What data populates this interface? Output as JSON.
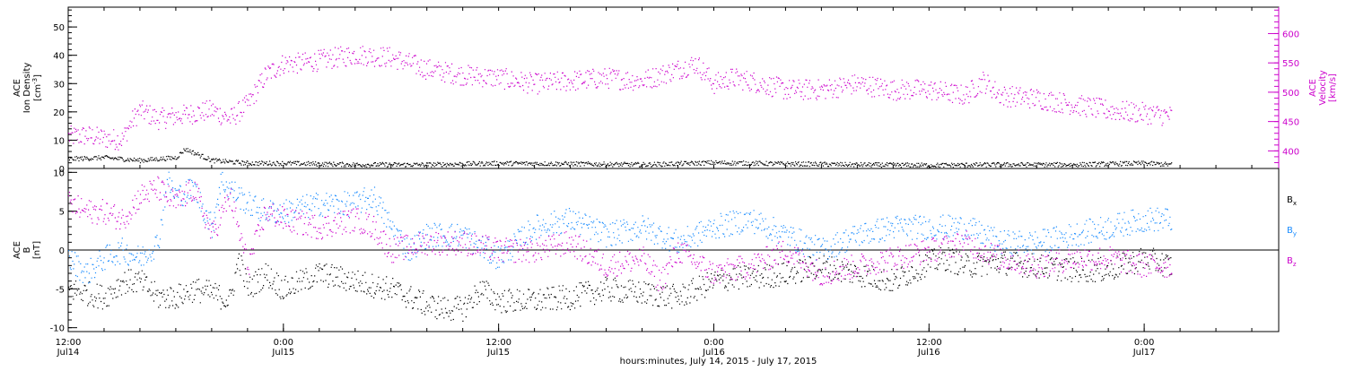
{
  "colors": {
    "black": "#000000",
    "magenta": "#cc00cc",
    "blue": "#1a8cff"
  },
  "time_axis": {
    "xlabel": "hours:minutes, July 14, 2015 - July 17, 2015",
    "ticks": [
      {
        "hours": 0,
        "time": "12:00",
        "day": "Jul14"
      },
      {
        "hours": 12,
        "time": "0:00",
        "day": "Jul15"
      },
      {
        "hours": 24,
        "time": "12:00",
        "day": "Jul15"
      },
      {
        "hours": 36,
        "time": "0:00",
        "day": "Jul16"
      },
      {
        "hours": 48,
        "time": "12:00",
        "day": "Jul16"
      },
      {
        "hours": 60,
        "time": "0:00",
        "day": "Jul17"
      }
    ],
    "range_hours": [
      0,
      67.5
    ],
    "data_end_hours": 61.5
  },
  "chart_data": [
    {
      "type": "scatter",
      "title": "",
      "xlabel": "",
      "ylabel_left": [
        "ACE",
        "Ion Density",
        "[cm",
        "-3",
        "]"
      ],
      "ylabel_right": [
        "ACE",
        "Velocity",
        "[km/s]"
      ],
      "ylim_left": [
        0,
        57
      ],
      "ylim_right": [
        370,
        645
      ],
      "left_ticks": [
        0,
        10,
        20,
        30,
        40,
        50
      ],
      "right_ticks": [
        400,
        450,
        500,
        550,
        600
      ],
      "series": [
        {
          "axis": "left",
          "color": "black",
          "x": [
            0,
            2,
            4,
            6,
            6.5,
            8,
            10,
            12,
            16,
            20,
            24,
            28,
            32,
            36,
            40,
            44,
            48,
            52,
            56,
            60,
            61.5
          ],
          "y": [
            3.5,
            4,
            3,
            4,
            7,
            3,
            2,
            2,
            1.5,
            1.5,
            2,
            1.8,
            1.5,
            2.2,
            1.8,
            1.5,
            1.3,
            1.5,
            1.5,
            2,
            1.5
          ]
        },
        {
          "axis": "right",
          "color": "magenta",
          "x": [
            0,
            1,
            2,
            3,
            3.5,
            4,
            5,
            6,
            7,
            8,
            9,
            10,
            11,
            12,
            13,
            14,
            16,
            18,
            20,
            22,
            24,
            26,
            28,
            30,
            32,
            33,
            34,
            35,
            36,
            37,
            38,
            40,
            42,
            44,
            46,
            48,
            50,
            51,
            52,
            54,
            56,
            58,
            60,
            61.5
          ],
          "y": [
            425,
            427,
            422,
            420,
            450,
            470,
            455,
            460,
            465,
            470,
            455,
            480,
            530,
            550,
            550,
            555,
            565,
            560,
            540,
            530,
            525,
            515,
            520,
            525,
            520,
            530,
            540,
            550,
            515,
            525,
            520,
            505,
            505,
            515,
            505,
            505,
            495,
            520,
            495,
            490,
            480,
            470,
            465,
            460
          ]
        }
      ]
    },
    {
      "type": "scatter",
      "title": "",
      "xlabel": "",
      "ylabel_left": [
        "ACE",
        "B",
        "[nT]"
      ],
      "ylim": [
        -10.5,
        10.5
      ],
      "left_ticks": [
        -10,
        -5,
        0,
        5,
        10
      ],
      "zero_line": true,
      "series": [
        {
          "name": "B",
          "sub": "x",
          "color": "black",
          "x": [
            0,
            1,
            2,
            3,
            4,
            5,
            6,
            7,
            8,
            9,
            9.5,
            10,
            11,
            12,
            13,
            14,
            16,
            18,
            20,
            21,
            22,
            23,
            24,
            26,
            28,
            30,
            32,
            34,
            36,
            37,
            38,
            40,
            42,
            44,
            46,
            48,
            49,
            50,
            52,
            54,
            56,
            58,
            60,
            61.5
          ],
          "y": [
            -5,
            -5.5,
            -6,
            -4,
            -4,
            -6,
            -6,
            -5,
            -5.5,
            -6.5,
            -1,
            -5,
            -3,
            -5,
            -4,
            -3,
            -4,
            -5,
            -7,
            -7.5,
            -7.5,
            -5,
            -6.5,
            -6.5,
            -6,
            -5,
            -5.5,
            -6,
            -4,
            -3.5,
            -3.5,
            -3,
            -2,
            -3,
            -4,
            -1.5,
            -1,
            -2,
            -1.5,
            -2,
            -2.5,
            -2.5,
            -1,
            -2
          ]
        },
        {
          "name": "B",
          "sub": "y",
          "color": "blue",
          "x": [
            0,
            1,
            2,
            3,
            4,
            5,
            5.5,
            6,
            7,
            8,
            8.5,
            9,
            10,
            11,
            12,
            14,
            16,
            17,
            18,
            19,
            20,
            22,
            24,
            26,
            28,
            30,
            32,
            34,
            36,
            38,
            40,
            42,
            44,
            46,
            48,
            50,
            52,
            54,
            56,
            58,
            60,
            61.5
          ],
          "y": [
            -1,
            -3,
            -1,
            0,
            -1,
            1,
            9,
            7,
            8,
            3,
            9,
            8,
            6,
            5,
            5,
            6,
            6,
            7,
            3,
            0,
            2,
            2,
            -1,
            3,
            4,
            2,
            3,
            1,
            3,
            4,
            2,
            0,
            2,
            3,
            3,
            3,
            1,
            1,
            2,
            3,
            4,
            4
          ]
        },
        {
          "name": "B",
          "sub": "z",
          "color": "magenta",
          "x": [
            0,
            1,
            2,
            3,
            4,
            5,
            6,
            7,
            8,
            9,
            10,
            11,
            12,
            14,
            16,
            17,
            18,
            20,
            22,
            24,
            26,
            28,
            30,
            32,
            33,
            34,
            36,
            38,
            40,
            42,
            44,
            46,
            48,
            50,
            52,
            54,
            56,
            58,
            60,
            61.5
          ],
          "y": [
            6,
            5,
            5,
            4,
            7,
            8,
            6,
            8,
            2,
            7,
            -2,
            5,
            4,
            3,
            4,
            3,
            0,
            1,
            1,
            0,
            0,
            1,
            -2,
            -1,
            -4,
            0,
            -3,
            -2,
            0,
            -3,
            -2,
            -1,
            0,
            1,
            -1,
            -2,
            -1,
            -1,
            -2,
            -2
          ]
        }
      ],
      "legend": [
        {
          "name": "B",
          "sub": "x",
          "color": "black"
        },
        {
          "name": "B",
          "sub": "y",
          "color": "blue"
        },
        {
          "name": "B",
          "sub": "z",
          "color": "magenta"
        }
      ]
    }
  ]
}
